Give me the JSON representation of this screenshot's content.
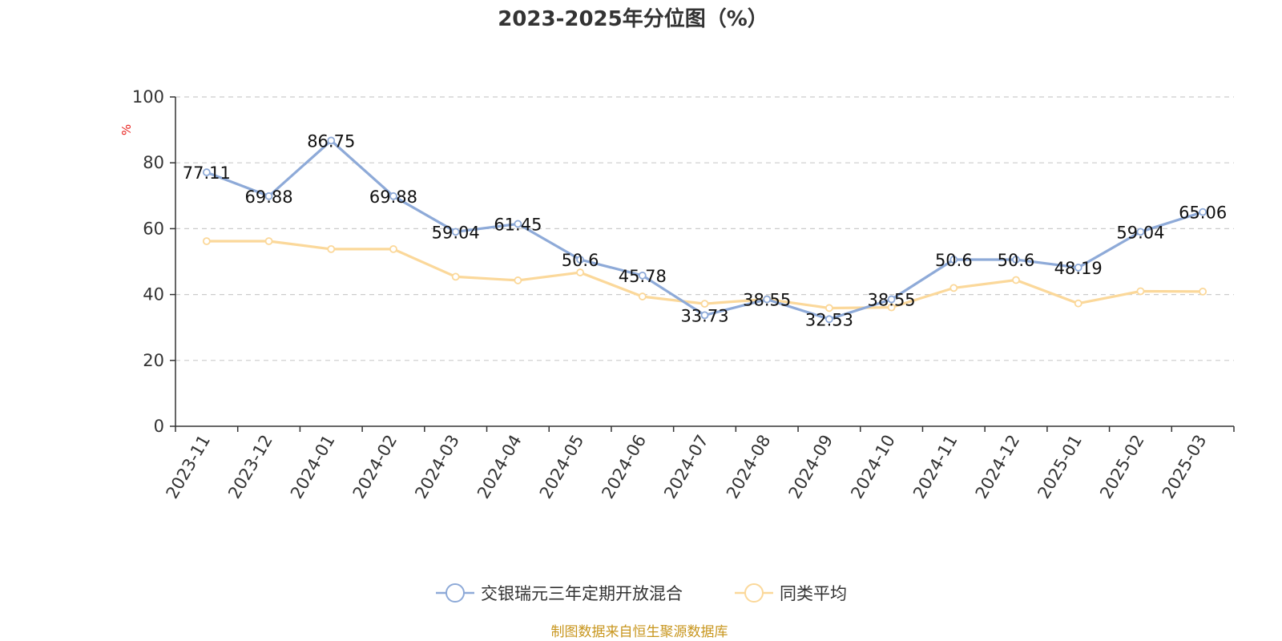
{
  "chart_data": {
    "type": "line",
    "title": "2023-2025年分位图（%）",
    "ylabel": "%",
    "xlabel": "",
    "categories": [
      "2023-11",
      "2023-12",
      "2024-01",
      "2024-02",
      "2024-03",
      "2024-04",
      "2024-05",
      "2024-06",
      "2024-07",
      "2024-08",
      "2024-09",
      "2024-10",
      "2024-11",
      "2024-12",
      "2025-01",
      "2025-02",
      "2025-03"
    ],
    "ylim": [
      0,
      100
    ],
    "yticks": [
      0,
      20,
      40,
      60,
      80,
      100
    ],
    "grid": true,
    "legend_position": "bottom",
    "series": [
      {
        "name": "交银瑞元三年定期开放混合",
        "color": "#8eaad8",
        "values": [
          77.11,
          69.88,
          86.75,
          69.88,
          59.04,
          61.45,
          50.6,
          45.78,
          33.73,
          38.55,
          32.53,
          38.55,
          50.6,
          50.6,
          48.19,
          59.04,
          65.06
        ],
        "labels": [
          "77.11",
          "69.88",
          "86.75",
          "69.88",
          "59.04",
          "61.45",
          "50.6",
          "45.78",
          "33.73",
          "38.55",
          "32.53",
          "38.55",
          "50.6",
          "50.6",
          "48.19",
          "59.04",
          "65.06"
        ],
        "show_labels": true
      },
      {
        "name": "同类平均",
        "color": "#fbd89a",
        "values": [
          56.2,
          56.2,
          53.8,
          53.8,
          45.4,
          44.3,
          46.7,
          39.4,
          37.2,
          38.6,
          35.9,
          36.1,
          42.0,
          44.4,
          37.3,
          41.0,
          40.9
        ],
        "show_labels": false
      }
    ]
  },
  "source": "制图数据来自恒生聚源数据库",
  "colors": {
    "axis": "#333333",
    "grid": "#cccccc",
    "ylabel": "#e8231f",
    "source": "#c8961e"
  }
}
